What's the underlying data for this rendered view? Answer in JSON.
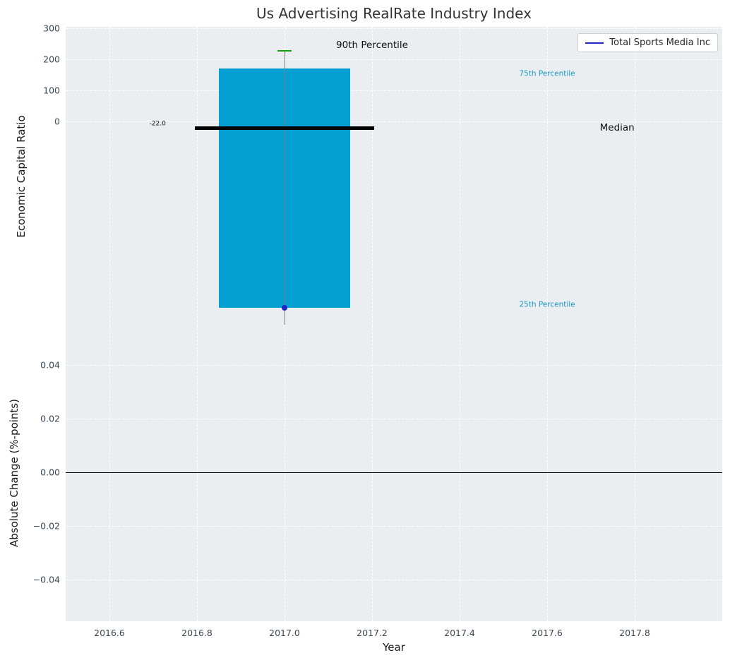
{
  "title": "Us Advertising RealRate Industry Index",
  "legend": {
    "label": "Total Sports Media Inc"
  },
  "colors": {
    "page_bg": "#ffffff",
    "plot_bg": "#ebeef0",
    "grid": "#ffffff",
    "box_fill": "#04a0d1",
    "median_line": "#000000",
    "cap": "#10a010",
    "whisker": "#7f7f7f",
    "point": "#2323cc",
    "legend_line": "#2323cc",
    "percentile_text": "#1b9ac6",
    "annotation_text": "#111111",
    "tick_text": "#3b4752",
    "title_text": "#333333",
    "axis_label_text": "#1a1a1a",
    "zero_line": "#000000",
    "legend_border": "#c9ced3"
  },
  "chart_data": [
    {
      "type": "box",
      "title": "Us Advertising RealRate Industry Index",
      "ylabel": "Economic Capital Ratio",
      "xlim": [
        2016.5,
        2018.0
      ],
      "ylim": [
        -657,
        304
      ],
      "grid": "dashed",
      "legend_position": "upper right",
      "legend_entries": [
        "Total Sports Media Inc"
      ],
      "yticks": [
        {
          "v": 0,
          "label": "0"
        },
        {
          "v": 100,
          "label": "100"
        },
        {
          "v": 200,
          "label": "200"
        },
        {
          "v": 300,
          "label": "300"
        }
      ],
      "xticks": [
        {
          "v": 2016.6,
          "label": "2016.6"
        },
        {
          "v": 2016.8,
          "label": "2016.8"
        },
        {
          "v": 2017.0,
          "label": "2017.0"
        },
        {
          "v": 2017.2,
          "label": "2017.2"
        },
        {
          "v": 2017.4,
          "label": "2017.4"
        },
        {
          "v": 2017.6,
          "label": "2017.6"
        },
        {
          "v": 2017.8,
          "label": "2017.8"
        }
      ],
      "box": {
        "x": 2017.0,
        "width": 0.3,
        "q25": -600,
        "median": -22.0,
        "q75": 170,
        "p90": 230,
        "whisker_low": -655,
        "median_width": 0.41,
        "cap_width": 0.032
      },
      "point": {
        "name": "Total Sports Media Inc",
        "x": 2017.0,
        "y": -600
      },
      "annotations": [
        {
          "id": "label-90th-percentile",
          "text": "90th Percentile",
          "x": 2017.2,
          "y": 245,
          "color": "#111111",
          "size": 13.5
        },
        {
          "id": "label-75th-percentile",
          "text": "75th Percentile",
          "x": 2017.6,
          "y": 152,
          "color": "#1b9ac6",
          "size": 10.5
        },
        {
          "id": "label-median",
          "text": "Median",
          "x": 2017.76,
          "y": -22,
          "color": "#111111",
          "size": 13.5
        },
        {
          "id": "label-25th-percentile",
          "text": "25th Percentile",
          "x": 2017.6,
          "y": -590,
          "color": "#1b9ac6",
          "size": 10.5
        },
        {
          "id": "label-median-value",
          "text": "-22.0",
          "x": 2016.71,
          "y": -10,
          "color": "#111111",
          "size": 9
        }
      ]
    },
    {
      "type": "line",
      "ylabel": "Absolute Change (%-points)",
      "xlabel": "Year",
      "xlim": [
        2016.5,
        2018.0
      ],
      "ylim": [
        -0.0555,
        0.0547
      ],
      "grid": "dashed",
      "hline": 0.0,
      "yticks": [
        {
          "v": 0.04,
          "label": "0.04"
        },
        {
          "v": 0.02,
          "label": "0.02"
        },
        {
          "v": 0.0,
          "label": "0.00"
        },
        {
          "v": -0.02,
          "label": "−0.02"
        },
        {
          "v": -0.04,
          "label": "−0.04"
        }
      ],
      "xticks": [
        {
          "v": 2016.6,
          "label": "2016.6"
        },
        {
          "v": 2016.8,
          "label": "2016.8"
        },
        {
          "v": 2017.0,
          "label": "2017.0"
        },
        {
          "v": 2017.2,
          "label": "2017.2"
        },
        {
          "v": 2017.4,
          "label": "2017.4"
        },
        {
          "v": 2017.6,
          "label": "2017.6"
        },
        {
          "v": 2017.8,
          "label": "2017.8"
        }
      ]
    }
  ]
}
